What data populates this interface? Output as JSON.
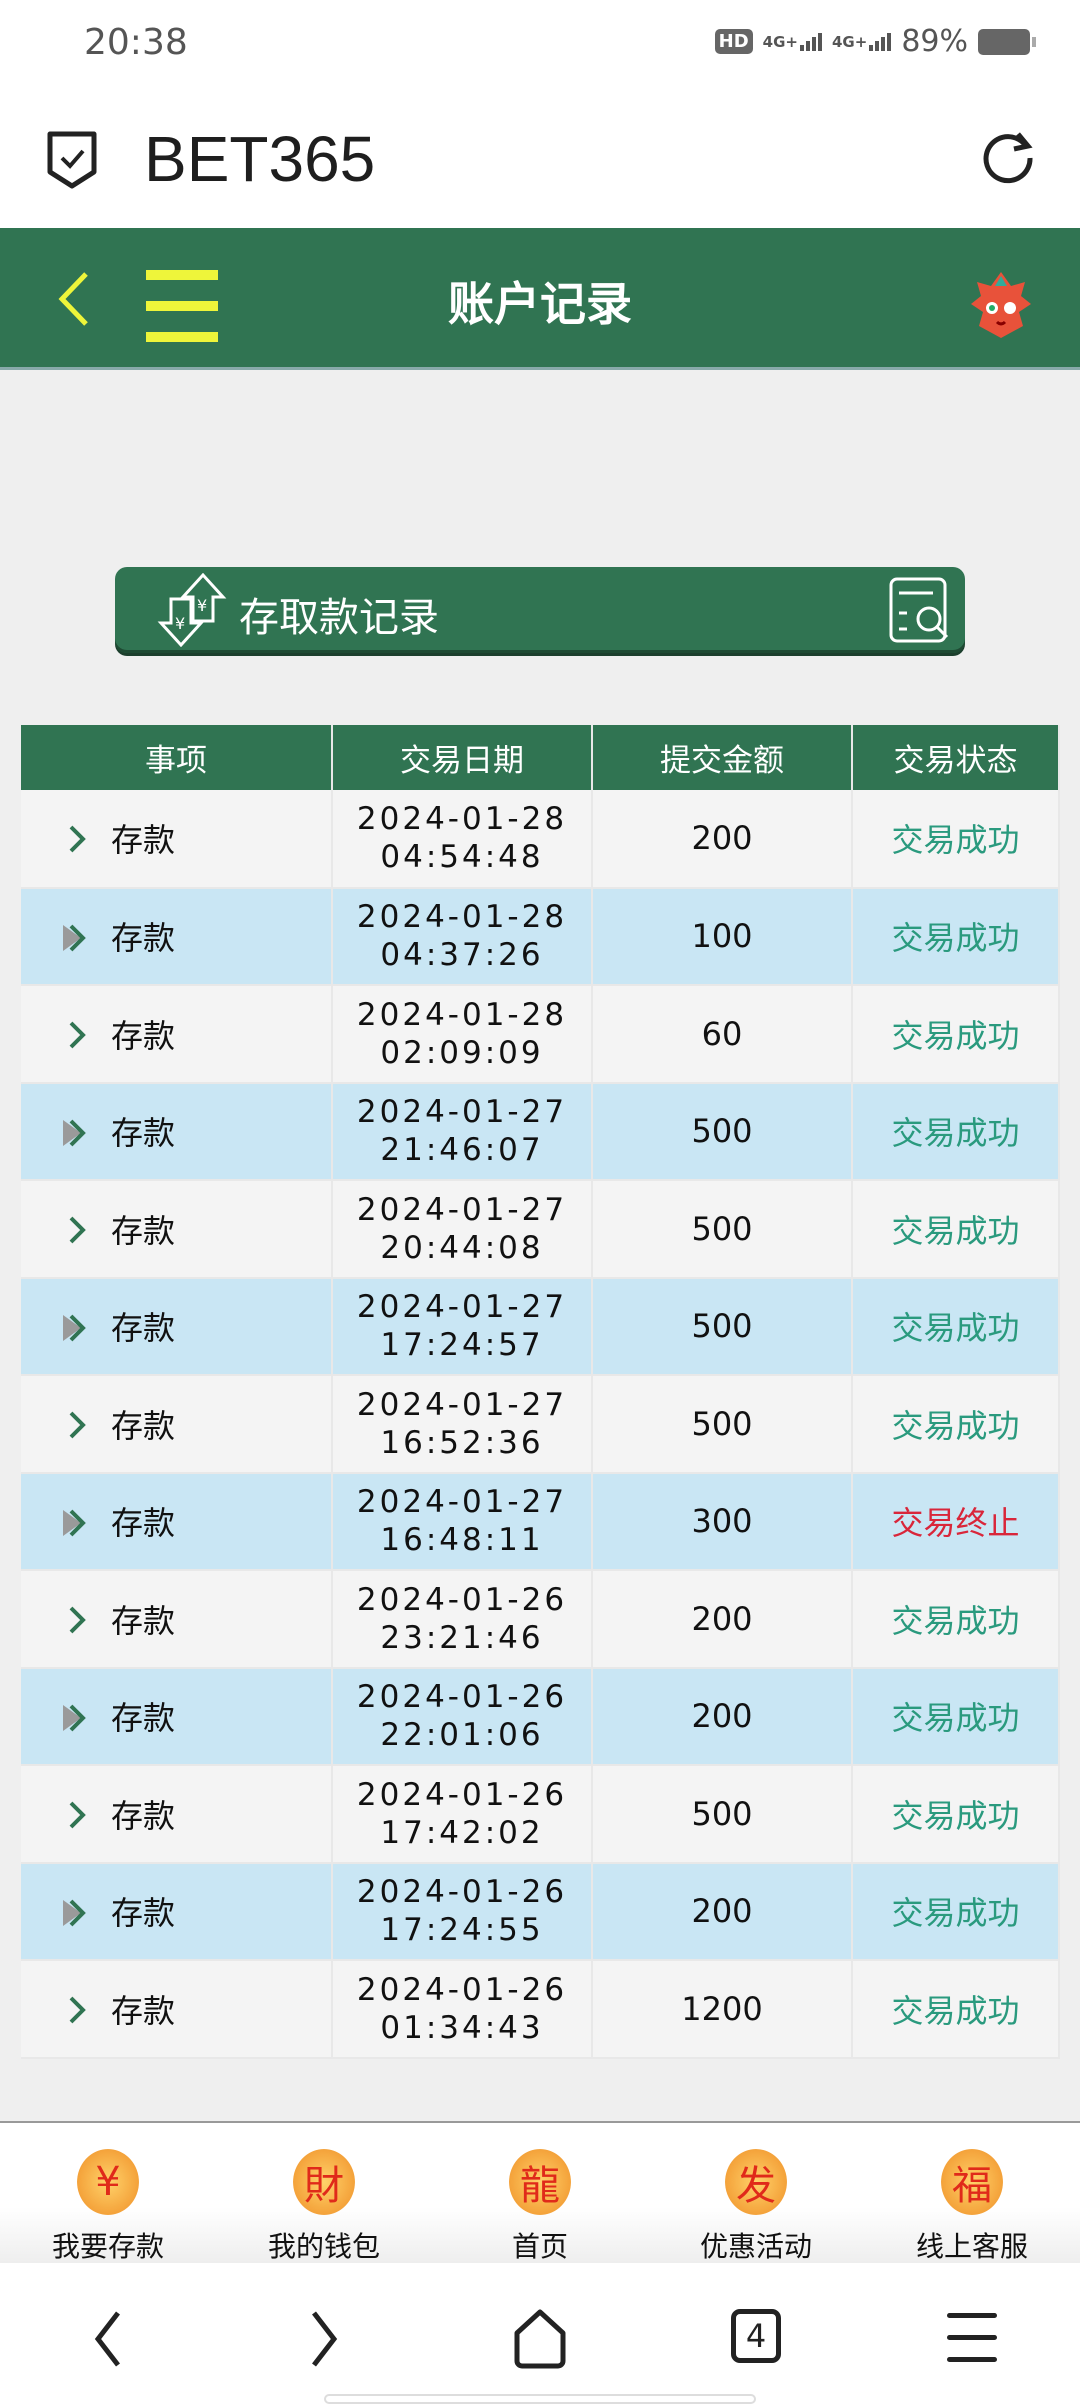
{
  "status_bar": {
    "time": "20:38",
    "battery": "89%",
    "network": [
      "HD",
      "4G+",
      "4G+"
    ]
  },
  "browser": {
    "title": "BET365",
    "tab_count": "4"
  },
  "header": {
    "title": "账户记录"
  },
  "banner": {
    "label": "存取款记录"
  },
  "table": {
    "columns": [
      "事项",
      "交易日期",
      "提交金额",
      "交易状态"
    ],
    "rows": [
      {
        "item": "存款",
        "date": "2024-01-28",
        "time": "04:54:48",
        "amount": "200",
        "status": "交易成功"
      },
      {
        "item": "存款",
        "date": "2024-01-28",
        "time": "04:37:26",
        "amount": "100",
        "status": "交易成功"
      },
      {
        "item": "存款",
        "date": "2024-01-28",
        "time": "02:09:09",
        "amount": "60",
        "status": "交易成功"
      },
      {
        "item": "存款",
        "date": "2024-01-27",
        "time": "21:46:07",
        "amount": "500",
        "status": "交易成功"
      },
      {
        "item": "存款",
        "date": "2024-01-27",
        "time": "20:44:08",
        "amount": "500",
        "status": "交易成功"
      },
      {
        "item": "存款",
        "date": "2024-01-27",
        "time": "17:24:57",
        "amount": "500",
        "status": "交易成功"
      },
      {
        "item": "存款",
        "date": "2024-01-27",
        "time": "16:52:36",
        "amount": "500",
        "status": "交易成功"
      },
      {
        "item": "存款",
        "date": "2024-01-27",
        "time": "16:48:11",
        "amount": "300",
        "status": "交易终止"
      },
      {
        "item": "存款",
        "date": "2024-01-26",
        "time": "23:21:46",
        "amount": "200",
        "status": "交易成功"
      },
      {
        "item": "存款",
        "date": "2024-01-26",
        "time": "22:01:06",
        "amount": "200",
        "status": "交易成功"
      },
      {
        "item": "存款",
        "date": "2024-01-26",
        "time": "17:42:02",
        "amount": "500",
        "status": "交易成功"
      },
      {
        "item": "存款",
        "date": "2024-01-26",
        "time": "17:24:55",
        "amount": "200",
        "status": "交易成功"
      },
      {
        "item": "存款",
        "date": "2024-01-26",
        "time": "01:34:43",
        "amount": "1200",
        "status": "交易成功"
      }
    ]
  },
  "bottom_nav": [
    {
      "label": "我要存款",
      "icon": "dragon-coin-icon",
      "glyph": "¥"
    },
    {
      "label": "我的钱包",
      "icon": "dragon-wallet-icon",
      "glyph": "財"
    },
    {
      "label": "首页",
      "icon": "dragon-home-icon",
      "glyph": "龍"
    },
    {
      "label": "优惠活动",
      "icon": "fa-promo-icon",
      "glyph": "发"
    },
    {
      "label": "线上客服",
      "icon": "fu-service-icon",
      "glyph": "福"
    }
  ],
  "colors": {
    "brand_green": "#307452",
    "menu_yellow": "#eef53a",
    "row_alt": "#c9e6f4",
    "success": "#2a9a7e",
    "failed": "#d9263a"
  }
}
